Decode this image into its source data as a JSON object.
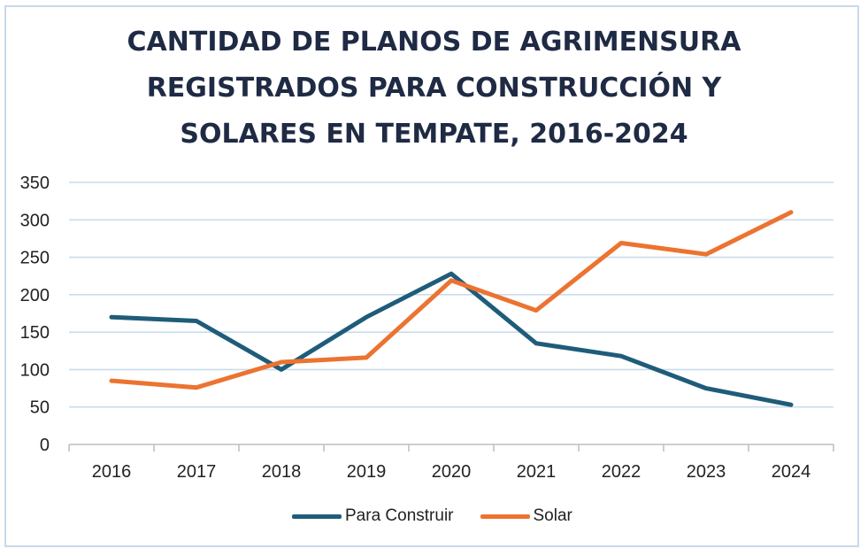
{
  "chart_data": {
    "type": "line",
    "title_lines": [
      "CANTIDAD DE PLANOS DE AGRIMENSURA",
      "REGISTRADOS PARA CONSTRUCCIÓN Y",
      "SOLARES EN TEMPATE, 2016-2024"
    ],
    "categories": [
      "2016",
      "2017",
      "2018",
      "2019",
      "2020",
      "2021",
      "2022",
      "2023",
      "2024"
    ],
    "y_ticks": [
      "0",
      "50",
      "100",
      "150",
      "200",
      "250",
      "300",
      "350"
    ],
    "ylim": [
      0,
      350
    ],
    "grid": true,
    "legend_position": "bottom",
    "series": [
      {
        "name": "Para Construir",
        "color": "#1f5c7a",
        "values": [
          170,
          165,
          100,
          170,
          228,
          135,
          118,
          75,
          53
        ]
      },
      {
        "name": "Solar",
        "color": "#ec7330",
        "values": [
          85,
          76,
          110,
          116,
          219,
          179,
          269,
          254,
          310
        ]
      }
    ]
  }
}
